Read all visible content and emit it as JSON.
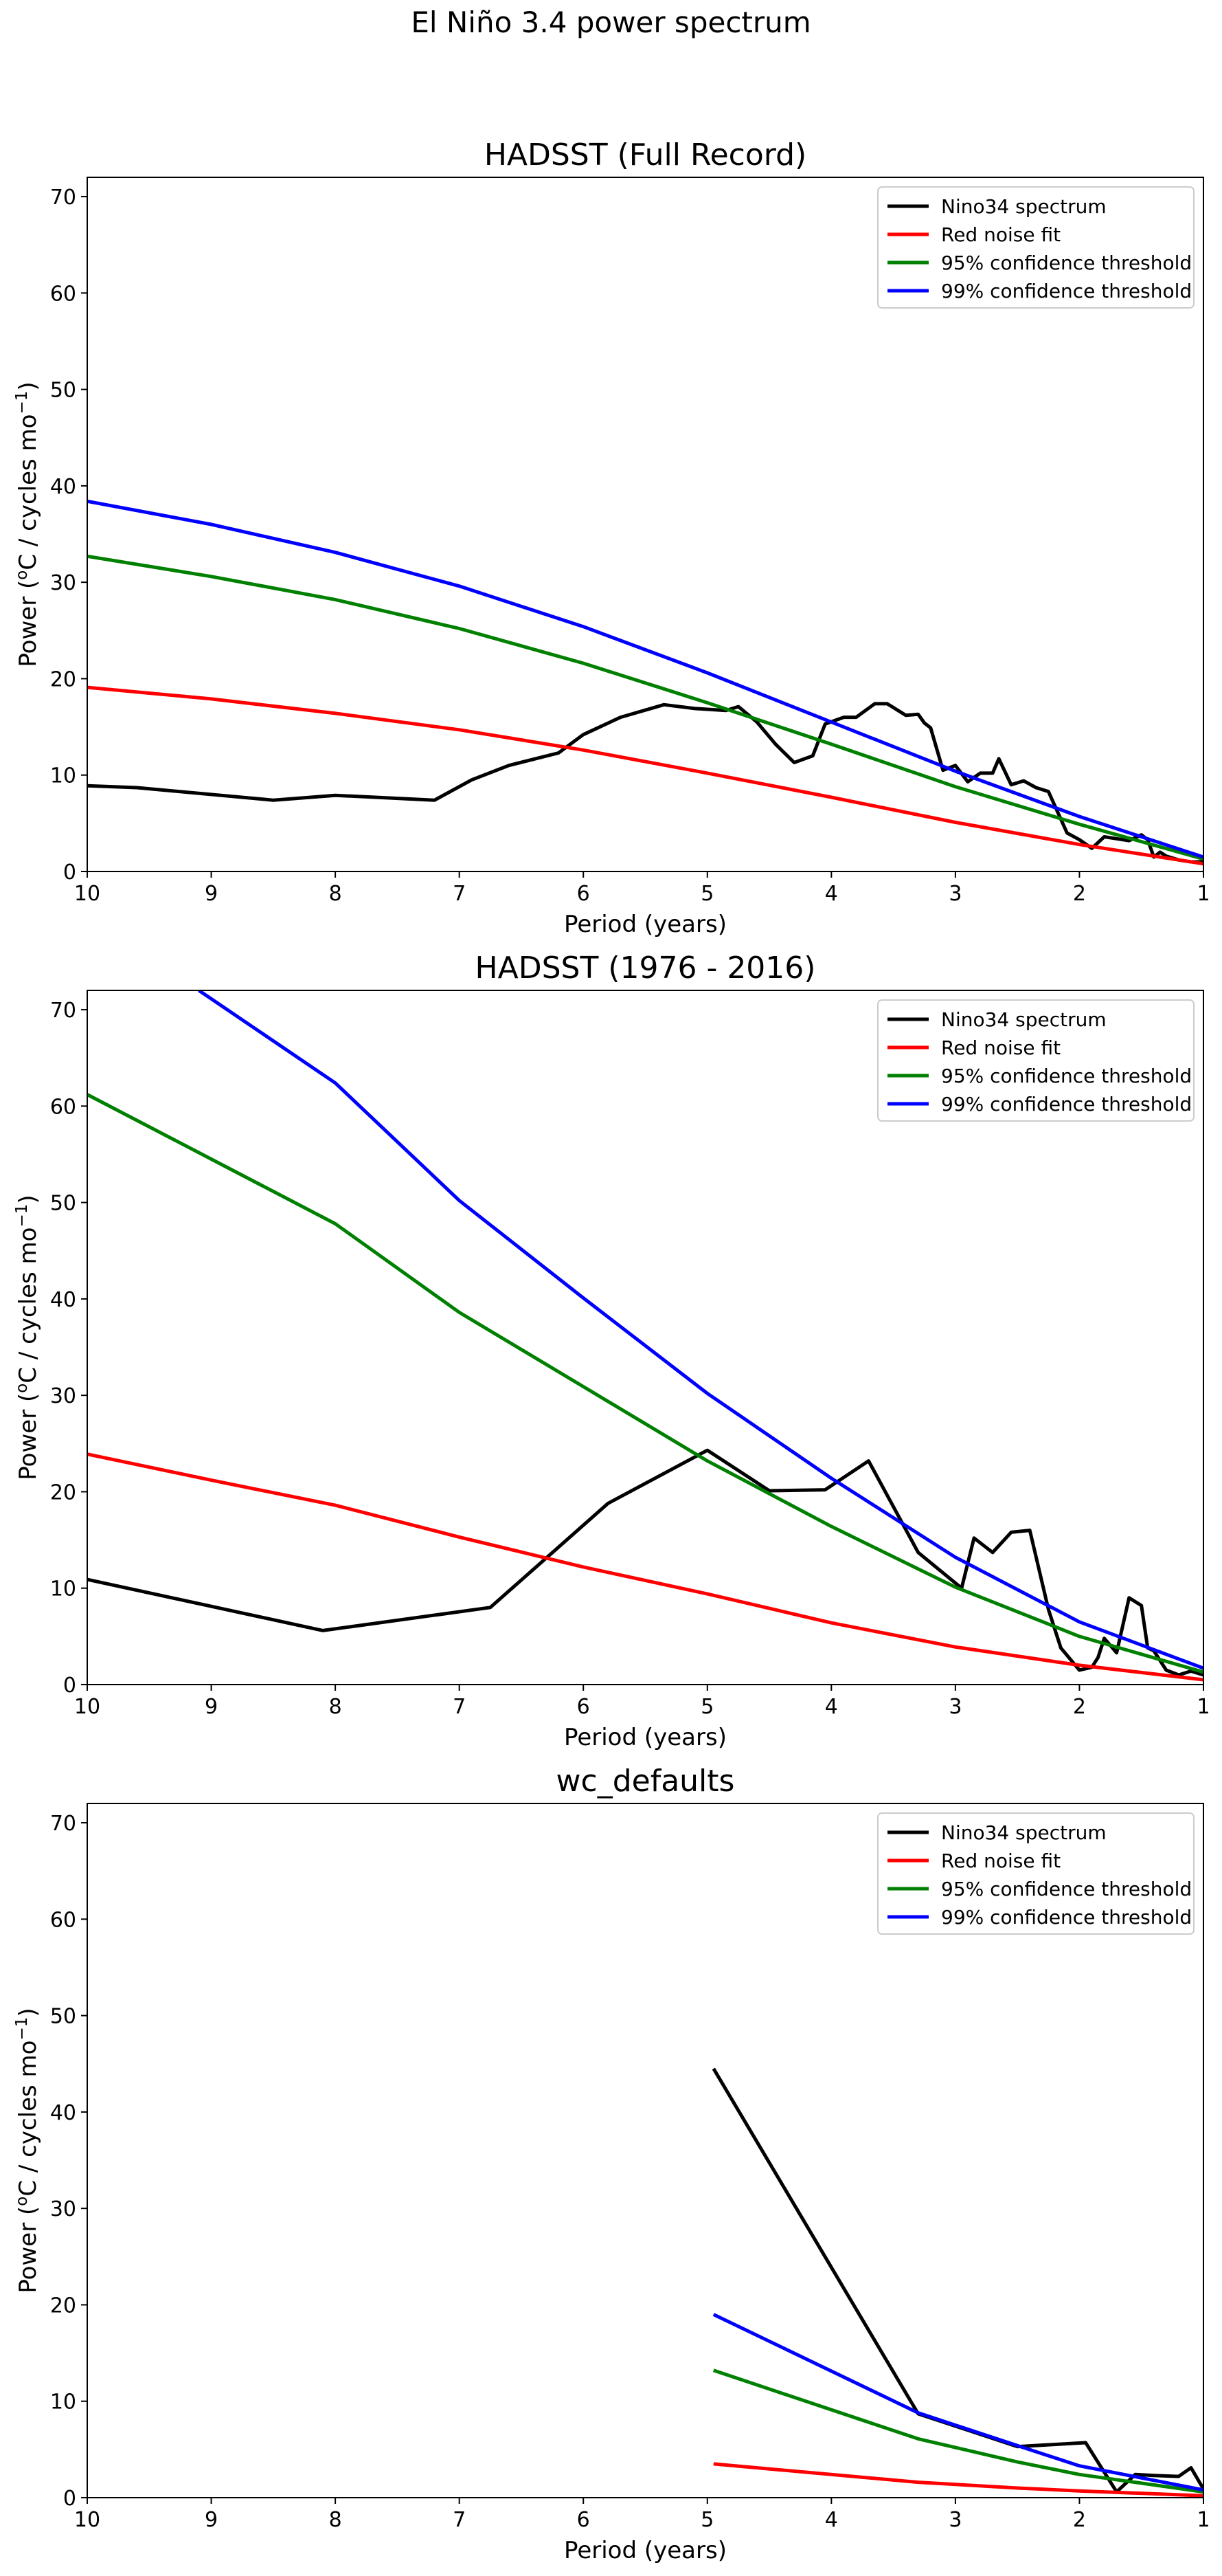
{
  "suptitle": "El Niño 3.4 power spectrum",
  "colors": {
    "spectrum": "#000000",
    "red_noise": "#ff0000",
    "conf95": "#008000",
    "conf99": "#0000ff"
  },
  "chart_data": [
    {
      "type": "line",
      "title": "HADSST (Full Record)",
      "xlabel": "Period (years)",
      "ylabel_main": "Power (",
      "ylabel_sup_o": "o",
      "ylabel_mid": "C / cycles mo",
      "ylabel_sup_exp": "−1",
      "ylabel_end": ")",
      "xlim": [
        10,
        1
      ],
      "ylim": [
        0,
        72
      ],
      "xticks": [
        10,
        9,
        8,
        7,
        6,
        5,
        4,
        3,
        2,
        1
      ],
      "yticks": [
        0,
        10,
        20,
        30,
        40,
        50,
        60,
        70
      ],
      "legend_position": "top-right",
      "series": [
        {
          "name": "Nino34 spectrum",
          "color": "#000000",
          "x": [
            10,
            9.6,
            8.5,
            8.0,
            7.2,
            6.9,
            6.6,
            6.2,
            6.0,
            5.7,
            5.35,
            5.1,
            4.85,
            4.75,
            4.6,
            4.45,
            4.3,
            4.15,
            4.05,
            3.9,
            3.8,
            3.65,
            3.55,
            3.4,
            3.3,
            3.25,
            3.2,
            3.1,
            3.0,
            2.9,
            2.8,
            2.7,
            2.65,
            2.55,
            2.45,
            2.35,
            2.25,
            2.1,
            2.0,
            1.9,
            1.8,
            1.7,
            1.6,
            1.5,
            1.45,
            1.4,
            1.35,
            1.3,
            1.2,
            1.1,
            1.0
          ],
          "y": [
            8.9,
            8.7,
            7.4,
            7.9,
            7.4,
            9.5,
            11.0,
            12.3,
            14.2,
            16.0,
            17.3,
            16.9,
            16.7,
            17.1,
            15.5,
            13.2,
            11.3,
            12.0,
            15.3,
            16.0,
            16.0,
            17.4,
            17.4,
            16.2,
            16.3,
            15.4,
            14.9,
            10.5,
            11.0,
            9.3,
            10.2,
            10.2,
            11.7,
            9.0,
            9.4,
            8.7,
            8.3,
            4.0,
            3.3,
            2.4,
            3.6,
            3.4,
            3.2,
            3.8,
            3.3,
            1.5,
            2.0,
            1.6,
            1.2,
            1.0,
            1.0
          ]
        },
        {
          "name": "Red noise fit",
          "color": "#ff0000",
          "x": [
            10,
            9,
            8,
            7,
            6,
            5,
            4,
            3,
            2,
            1
          ],
          "y": [
            19.1,
            17.9,
            16.4,
            14.7,
            12.6,
            10.2,
            7.7,
            5.1,
            2.8,
            0.8
          ]
        },
        {
          "name": "95% confidence threshold",
          "color": "#008000",
          "x": [
            10,
            9,
            8,
            7,
            6,
            5,
            4,
            3,
            2,
            1
          ],
          "y": [
            32.7,
            30.6,
            28.2,
            25.2,
            21.6,
            17.5,
            13.2,
            8.8,
            4.9,
            1.3
          ]
        },
        {
          "name": "99% confidence threshold",
          "color": "#0000ff",
          "x": [
            10,
            9,
            8,
            7,
            6,
            5,
            4,
            3,
            2,
            1
          ],
          "y": [
            38.4,
            36.0,
            33.1,
            29.6,
            25.4,
            20.6,
            15.5,
            10.4,
            5.7,
            1.5
          ]
        }
      ]
    },
    {
      "type": "line",
      "title": "HADSST (1976 - 2016)",
      "xlabel": "Period (years)",
      "ylabel_main": "Power (",
      "ylabel_sup_o": "o",
      "ylabel_mid": "C / cycles mo",
      "ylabel_sup_exp": "−1",
      "ylabel_end": ")",
      "xlim": [
        10,
        1
      ],
      "ylim": [
        0,
        72
      ],
      "xticks": [
        10,
        9,
        8,
        7,
        6,
        5,
        4,
        3,
        2,
        1
      ],
      "yticks": [
        0,
        10,
        20,
        30,
        40,
        50,
        60,
        70
      ],
      "legend_position": "top-right",
      "series": [
        {
          "name": "Nino34 spectrum",
          "color": "#000000",
          "x": [
            10,
            8.1,
            6.75,
            5.8,
            5.0,
            4.5,
            4.05,
            3.7,
            3.3,
            2.95,
            2.85,
            2.7,
            2.55,
            2.4,
            2.25,
            2.15,
            2.0,
            1.9,
            1.85,
            1.8,
            1.7,
            1.6,
            1.5,
            1.45,
            1.4,
            1.3,
            1.2,
            1.1,
            1.0
          ],
          "y": [
            10.9,
            5.6,
            8.0,
            18.8,
            24.3,
            20.1,
            20.2,
            23.2,
            13.7,
            10.0,
            15.2,
            13.7,
            15.8,
            16.0,
            7.8,
            3.8,
            1.5,
            1.8,
            2.8,
            4.8,
            3.3,
            9.0,
            8.2,
            3.8,
            3.5,
            1.5,
            1.0,
            1.4,
            1.0
          ]
        },
        {
          "name": "Red noise fit",
          "color": "#ff0000",
          "x": [
            10,
            9,
            8,
            7,
            6,
            5,
            4,
            3,
            2,
            1
          ],
          "y": [
            23.9,
            21.2,
            18.6,
            15.3,
            12.2,
            9.4,
            6.4,
            3.9,
            2.0,
            0.5
          ]
        },
        {
          "name": "95% confidence threshold",
          "color": "#008000",
          "x": [
            10,
            9,
            8,
            7,
            6,
            5,
            4,
            3,
            2,
            1
          ],
          "y": [
            61.2,
            54.5,
            47.8,
            38.6,
            30.9,
            23.2,
            16.4,
            10.1,
            5.0,
            1.3
          ]
        },
        {
          "name": "99% confidence threshold",
          "color": "#0000ff",
          "x": [
            9.1,
            8.0,
            7.0,
            6.0,
            5.0,
            4.0,
            3.0,
            2.0,
            1.0
          ],
          "y": [
            72.0,
            62.4,
            50.2,
            40.1,
            30.2,
            21.4,
            13.2,
            6.5,
            1.7
          ]
        }
      ]
    },
    {
      "type": "line",
      "title": "wc_defaults",
      "xlabel": "Period (years)",
      "ylabel_main": "Power (",
      "ylabel_sup_o": "o",
      "ylabel_mid": "C / cycles mo",
      "ylabel_sup_exp": "−1",
      "ylabel_end": ")",
      "xlim": [
        10,
        1
      ],
      "ylim": [
        0,
        72
      ],
      "xticks": [
        10,
        9,
        8,
        7,
        6,
        5,
        4,
        3,
        2,
        1
      ],
      "yticks": [
        0,
        10,
        20,
        30,
        40,
        50,
        60,
        70
      ],
      "legend_position": "top-right",
      "series": [
        {
          "name": "Nino34 spectrum",
          "color": "#000000",
          "x": [
            4.95,
            3.3,
            2.5,
            1.95,
            1.7,
            1.55,
            1.4,
            1.2,
            1.1,
            1.0
          ],
          "y": [
            44.5,
            8.7,
            5.3,
            5.7,
            0.6,
            2.4,
            2.3,
            2.2,
            3.1,
            0.9
          ]
        },
        {
          "name": "Red noise fit",
          "color": "#ff0000",
          "x": [
            4.95,
            3.3,
            2.5,
            2.0,
            1.0
          ],
          "y": [
            3.5,
            1.6,
            1.0,
            0.7,
            0.2
          ]
        },
        {
          "name": "95% confidence threshold",
          "color": "#008000",
          "x": [
            4.95,
            3.3,
            2.5,
            2.0,
            1.0
          ],
          "y": [
            13.2,
            6.1,
            3.7,
            2.4,
            0.6
          ]
        },
        {
          "name": "99% confidence threshold",
          "color": "#0000ff",
          "x": [
            4.95,
            3.3,
            2.5,
            2.0,
            1.0
          ],
          "y": [
            19.0,
            8.8,
            5.4,
            3.3,
            0.8
          ]
        }
      ]
    }
  ]
}
